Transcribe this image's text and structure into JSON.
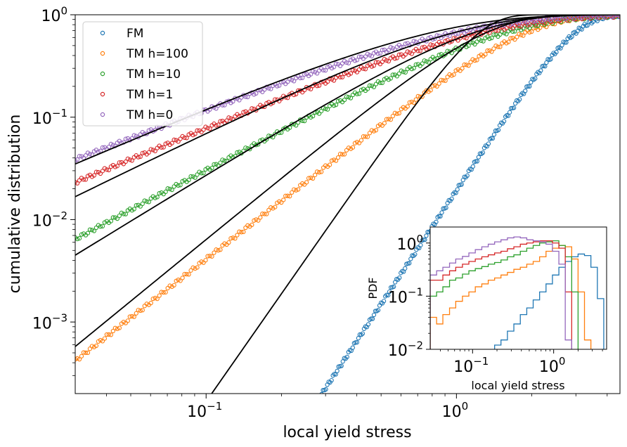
{
  "chart_data": [
    {
      "type": "scatter",
      "title": "",
      "xlabel": "local yield stress",
      "ylabel": "cumulative distribution",
      "xscale": "log",
      "yscale": "log",
      "xlim": [
        0.03,
        4.5
      ],
      "ylim": [
        0.0002,
        1.0
      ],
      "x_ticks": [
        {
          "value": 0.1,
          "base": "10",
          "exp": "−1"
        },
        {
          "value": 1,
          "base": "10",
          "exp": "0"
        }
      ],
      "y_ticks": [
        {
          "value": 0.001,
          "base": "10",
          "exp": "−3"
        },
        {
          "value": 0.01,
          "base": "10",
          "exp": "−2"
        },
        {
          "value": 0.1,
          "base": "10",
          "exp": "−1"
        },
        {
          "value": 1,
          "base": "10",
          "exp": "0"
        }
      ],
      "legend_position": "top-left",
      "series": [
        {
          "name": "FM",
          "color": "#1f77b4",
          "knee": 2.9,
          "beta": 3.7,
          "smin": 0.155
        },
        {
          "name": "TM h=100",
          "color": "#ff7f0e",
          "knee": 1.8,
          "beta": 1.9,
          "smin": 0.03
        },
        {
          "name": "TM h=10",
          "color": "#2ca02c",
          "knee": 1.45,
          "beta": 1.3,
          "smin": 0.03
        },
        {
          "name": "TM h=1",
          "color": "#d62728",
          "knee": 1.15,
          "beta": 1.03,
          "smin": 0.03
        },
        {
          "name": "TM h=0",
          "color": "#9467bd",
          "knee": 0.9,
          "beta": 0.95,
          "smin": 0.03
        }
      ],
      "fit_lines": [
        {
          "name": "fit FM",
          "knee": 1.2,
          "beta": 3.5
        },
        {
          "name": "fit TM h=100",
          "knee": 1.25,
          "beta": 2.0
        },
        {
          "name": "fit TM h=10",
          "knee": 1.1,
          "beta": 1.5
        },
        {
          "name": "fit TM h=1",
          "knee": 0.9,
          "beta": 1.2
        },
        {
          "name": "fit TM h=0",
          "knee": 0.72,
          "beta": 1.05
        }
      ]
    },
    {
      "type": "histogram",
      "title": "",
      "xlabel": "local yield stress",
      "ylabel": "PDF",
      "xscale": "log",
      "yscale": "log",
      "xlim": [
        0.03,
        4.5
      ],
      "ylim": [
        0.01,
        2.0
      ],
      "x_ticks": [
        {
          "value": 0.1,
          "base": "10",
          "exp": "−1"
        },
        {
          "value": 1,
          "base": "10",
          "exp": "0"
        }
      ],
      "y_ticks": [
        {
          "value": 0.01,
          "base": "10",
          "exp": "−2"
        },
        {
          "value": 0.1,
          "base": "10",
          "exp": "−1"
        },
        {
          "value": 1,
          "base": "10",
          "exp": "0"
        }
      ],
      "bin_edges": [
        0.03,
        0.036,
        0.043,
        0.052,
        0.062,
        0.075,
        0.09,
        0.108,
        0.13,
        0.156,
        0.187,
        0.224,
        0.269,
        0.323,
        0.388,
        0.466,
        0.559,
        0.671,
        0.805,
        0.966,
        1.16,
        1.39,
        1.67,
        2.0,
        2.4,
        2.88,
        3.46,
        4.15
      ],
      "series": [
        {
          "name": "FM",
          "color": "#1f77b4",
          "values": [
            null,
            null,
            null,
            null,
            null,
            null,
            null,
            null,
            null,
            null,
            0.012,
            0.015,
            0.022,
            0.03,
            0.045,
            0.06,
            0.085,
            0.12,
            0.17,
            0.25,
            0.35,
            0.45,
            0.55,
            0.62,
            0.58,
            0.35,
            0.09
          ]
        },
        {
          "name": "TM h=100",
          "color": "#ff7f0e",
          "values": [
            0.04,
            0.03,
            0.045,
            0.06,
            0.08,
            0.1,
            0.12,
            0.15,
            0.17,
            0.2,
            0.22,
            0.25,
            0.28,
            0.32,
            0.35,
            0.4,
            0.45,
            0.55,
            0.7,
            0.8,
            0.9,
            0.85,
            0.5,
            0.12,
            0.015
          ]
        },
        {
          "name": "TM h=10",
          "color": "#2ca02c",
          "values": [
            0.1,
            0.12,
            0.15,
            0.2,
            0.22,
            0.26,
            0.3,
            0.33,
            0.36,
            0.4,
            0.43,
            0.48,
            0.55,
            0.6,
            0.7,
            0.8,
            0.9,
            1.0,
            1.05,
            1.1,
            0.9,
            0.55,
            0.12
          ]
        },
        {
          "name": "TM h=1",
          "color": "#d62728",
          "values": [
            0.2,
            0.2,
            0.25,
            0.3,
            0.35,
            0.4,
            0.45,
            0.5,
            0.55,
            0.6,
            0.65,
            0.7,
            0.78,
            0.85,
            0.95,
            1.0,
            1.05,
            1.1,
            1.1,
            1.0,
            0.8,
            0.12
          ]
        },
        {
          "name": "TM h=0",
          "color": "#9467bd",
          "values": [
            0.25,
            0.3,
            0.35,
            0.42,
            0.5,
            0.56,
            0.65,
            0.75,
            0.85,
            0.95,
            1.05,
            1.15,
            1.25,
            1.3,
            1.25,
            1.15,
            1.1,
            1.05,
            0.95,
            0.7,
            0.4,
            0.015
          ]
        }
      ]
    }
  ]
}
